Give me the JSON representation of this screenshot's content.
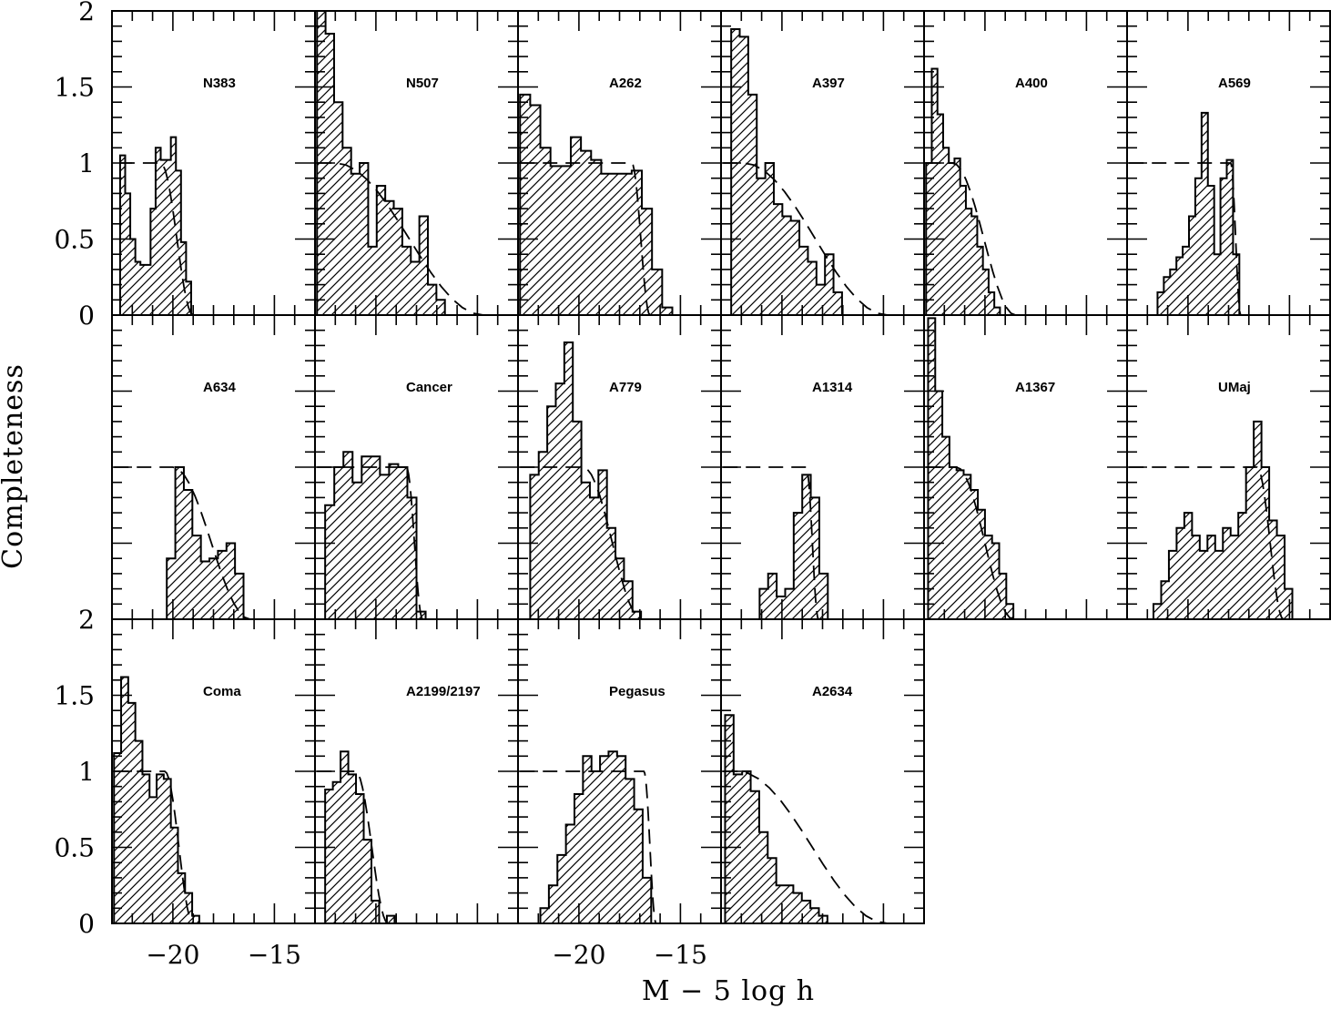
{
  "figure": {
    "y_axis_title": "Completeness",
    "x_axis_title": "M − 5 log h"
  },
  "chart_data": {
    "type": "histogram-grid",
    "grid": {
      "rows": 3,
      "cols": 6
    },
    "xlim": [
      -23,
      -13
    ],
    "ylim": [
      0,
      2
    ],
    "x_ticks_major": [
      -20,
      -15
    ],
    "x_tick_labels": [
      "−20",
      "−15"
    ],
    "y_ticks_major": [
      0,
      0.5,
      1,
      1.5,
      2
    ],
    "y_tick_labels": [
      "0",
      "0.5",
      "1",
      "1.5",
      "2"
    ],
    "curve_note": "dashed line: completeness model",
    "panels": [
      {
        "name": "N383",
        "bin_start": -22.6,
        "bin_width": 0.25,
        "values": [
          1.05,
          0.8,
          0.5,
          0.35,
          0.33,
          0.33,
          0.7,
          1.1,
          1.02,
          1.02,
          1.17,
          0.95,
          0.48,
          0.22,
          0.0
        ],
        "curve": {
          "plateau": 1.0,
          "x_start": -22.6,
          "knee": -20.6,
          "x_cut": -19.0,
          "x_end": -18.8
        }
      },
      {
        "name": "N507",
        "bin_start": -22.9,
        "bin_width": 0.42,
        "values": [
          2.0,
          1.85,
          1.4,
          1.1,
          0.93,
          1.0,
          0.45,
          0.85,
          0.75,
          0.7,
          0.45,
          0.35,
          0.65,
          0.2,
          0.1
        ],
        "curve": {
          "plateau": 1.0,
          "x_start": -22.9,
          "knee": -22.0,
          "x_cut": -14.7,
          "x_end": -13.5
        }
      },
      {
        "name": "A262",
        "bin_start": -22.9,
        "bin_width": 0.5,
        "values": [
          1.45,
          1.38,
          1.1,
          0.98,
          0.98,
          1.17,
          1.08,
          1.02,
          0.93,
          0.93,
          0.93,
          0.95,
          0.7,
          0.3,
          0.05
        ],
        "curve": {
          "plateau": 1.0,
          "x_start": -22.9,
          "knee": -17.4,
          "x_cut": -16.5,
          "x_end": -15.9
        }
      },
      {
        "name": "A397",
        "bin_start": -22.5,
        "bin_width": 0.42,
        "values": [
          1.88,
          1.83,
          1.45,
          0.9,
          1.0,
          0.73,
          0.65,
          0.62,
          0.45,
          0.35,
          0.2,
          0.4,
          0.15
        ],
        "curve": {
          "plateau": 1.0,
          "x_start": -22.9,
          "knee": -21.9,
          "x_cut": -14.8,
          "x_end": -13.6
        }
      },
      {
        "name": "A400",
        "bin_start": -22.9,
        "bin_width": 0.28,
        "values": [
          1.0,
          1.62,
          1.32,
          1.1,
          1.0,
          1.03,
          0.85,
          0.7,
          0.65,
          0.45,
          0.3,
          0.15,
          0.05
        ],
        "curve": {
          "plateau": 1.0,
          "x_start": -22.9,
          "knee": -21.6,
          "x_cut": -18.5,
          "x_end": -17.4
        }
      },
      {
        "name": "A569",
        "bin_start": -21.5,
        "bin_width": 0.31,
        "values": [
          0.15,
          0.25,
          0.3,
          0.38,
          0.45,
          0.65,
          0.9,
          1.33,
          0.85,
          0.4,
          0.9,
          1.02,
          0.4
        ],
        "curve": {
          "plateau": 1.0,
          "x_start": -22.9,
          "knee": -17.9,
          "x_cut": -17.4,
          "x_end": -17.4
        }
      },
      {
        "name": "A634",
        "bin_start": -20.3,
        "bin_width": 0.42,
        "values": [
          0.4,
          1.0,
          0.85,
          0.55,
          0.38,
          0.4,
          0.45,
          0.5,
          0.3,
          0.0
        ],
        "curve": {
          "plateau": 1.0,
          "x_start": -22.9,
          "knee": -20.0,
          "x_cut": -16.2,
          "x_end": -15.1
        }
      },
      {
        "name": "Cancer",
        "bin_start": -22.5,
        "bin_width": 0.45,
        "values": [
          0.75,
          1.0,
          1.1,
          0.9,
          1.07,
          1.07,
          0.95,
          1.02,
          1.0,
          0.8,
          0.05
        ],
        "curve": {
          "plateau": 1.0,
          "x_start": -22.9,
          "knee": -18.5,
          "x_cut": -17.7,
          "x_end": -17.4
        }
      },
      {
        "name": "A779",
        "bin_start": -22.4,
        "bin_width": 0.42,
        "values": [
          0.95,
          1.1,
          1.4,
          1.55,
          1.82,
          1.3,
          0.9,
          0.8,
          0.98,
          0.6,
          0.4,
          0.25,
          0.05
        ],
        "curve": {
          "plateau": 1.0,
          "x_start": -22.9,
          "knee": -19.8,
          "x_cut": -16.9,
          "x_end": -16.2
        }
      },
      {
        "name": "A1314",
        "bin_start": -21.1,
        "bin_width": 0.42,
        "values": [
          0.2,
          0.3,
          0.15,
          0.2,
          0.7,
          0.95,
          0.8,
          0.3
        ],
        "curve": {
          "plateau": 1.0,
          "x_start": -22.9,
          "knee": -18.8,
          "x_cut": -18.2,
          "x_end": -17.7
        }
      },
      {
        "name": "A1367",
        "bin_start": -22.8,
        "bin_width": 0.35,
        "values": [
          1.98,
          1.5,
          1.2,
          1.0,
          0.98,
          0.95,
          0.85,
          0.72,
          0.55,
          0.5,
          0.3,
          0.1
        ],
        "curve": {
          "plateau": 1.0,
          "x_start": -22.9,
          "knee": -21.4,
          "x_cut": -18.6,
          "x_end": -17.4
        }
      },
      {
        "name": "UMaj",
        "bin_start": -21.7,
        "bin_width": 0.38,
        "values": [
          0.1,
          0.25,
          0.45,
          0.6,
          0.7,
          0.55,
          0.45,
          0.55,
          0.45,
          0.6,
          0.55,
          0.7,
          1.0,
          1.3,
          1.0,
          0.65,
          0.55,
          0.2
        ],
        "curve": {
          "plateau": 1.0,
          "x_start": -22.9,
          "knee": -16.6,
          "x_cut": -15.3,
          "x_end": -14.9
        }
      },
      {
        "name": "Coma",
        "bin_start": -22.9,
        "bin_width": 0.35,
        "values": [
          1.12,
          1.62,
          1.45,
          1.2,
          0.98,
          0.83,
          0.98,
          0.95,
          0.63,
          0.33,
          0.2,
          0.05
        ],
        "curve": {
          "plateau": 1.0,
          "x_start": -22.9,
          "knee": -20.4,
          "x_cut": -19.0,
          "x_end": -18.7
        }
      },
      {
        "name": "A2199/2197",
        "bin_start": -22.5,
        "bin_width": 0.38,
        "values": [
          0.88,
          0.93,
          1.13,
          0.98,
          0.85,
          0.55,
          0.15,
          0.0,
          0.05
        ],
        "curve": {
          "plateau": 1.0,
          "x_start": -22.9,
          "knee": -21.0,
          "x_cut": -19.4,
          "x_end": -19.1
        }
      },
      {
        "name": "Pegasus",
        "bin_start": -21.9,
        "bin_width": 0.42,
        "values": [
          0.1,
          0.25,
          0.45,
          0.65,
          0.85,
          1.1,
          1.0,
          1.1,
          1.13,
          1.1,
          0.95,
          0.75,
          0.3
        ],
        "curve": {
          "plateau": 1.0,
          "x_start": -22.9,
          "knee": -16.8,
          "x_cut": -16.2,
          "x_end": -16.0
        }
      },
      {
        "name": "A2634",
        "bin_start": -22.8,
        "bin_width": 0.42,
        "values": [
          1.37,
          0.98,
          1.0,
          0.87,
          0.6,
          0.43,
          0.25,
          0.25,
          0.2,
          0.15,
          0.1,
          0.05
        ],
        "curve": {
          "plateau": 1.0,
          "x_start": -22.9,
          "knee": -22.2,
          "x_cut": -14.8,
          "x_end": -13.6
        }
      }
    ]
  }
}
